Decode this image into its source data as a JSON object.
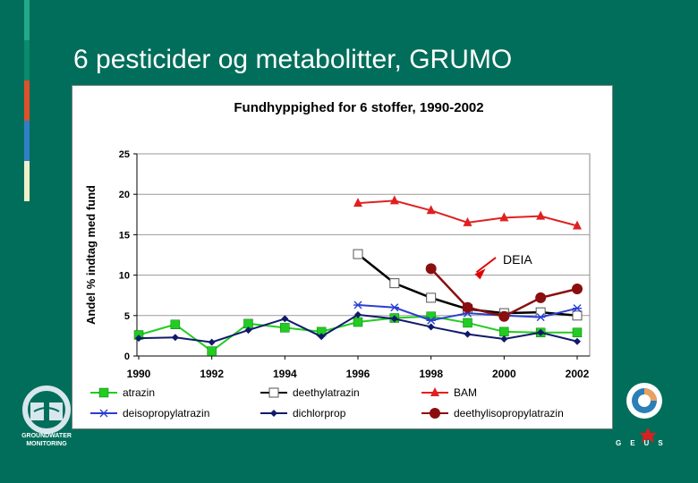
{
  "slide": {
    "title": "6 pesticider og metabolitter, GRUMO",
    "background_color": "#006e5a",
    "accent_colors": [
      "#22aa88",
      "#e0502a",
      "#2f7fc8",
      "#f0f0c8"
    ]
  },
  "logos": {
    "left_line1": "GROUNDWATER",
    "left_line2": "MONITORING",
    "right_text": "GEUS"
  },
  "chart_data": {
    "type": "line",
    "title": "Fundhyppighed for 6 stoffer, 1990-2002",
    "ylabel": "Andel % indtag med fund",
    "xlabel": "",
    "ylim": [
      0,
      25
    ],
    "xlim": [
      1990,
      2002
    ],
    "yticks": [
      0,
      5,
      10,
      15,
      20,
      25
    ],
    "xticks": [
      1990,
      1992,
      1994,
      1996,
      1998,
      2000,
      2002
    ],
    "grid": "horizontal",
    "legend_position": "bottom",
    "annotation": {
      "text": "DEIA",
      "points_to": "deethylisopropylatrazin",
      "x": 1999,
      "y": 10.8
    },
    "series": [
      {
        "name": "atrazin",
        "color": "#22cc22",
        "marker": "square-filled",
        "x": [
          1990,
          1991,
          1992,
          1993,
          1994,
          1995,
          1996,
          1997,
          1998,
          1999,
          2000,
          2001,
          2002
        ],
        "y": [
          2.6,
          3.9,
          0.6,
          4.0,
          3.5,
          3.0,
          4.2,
          4.7,
          4.9,
          4.1,
          3.0,
          2.9,
          2.9
        ]
      },
      {
        "name": "deethylatrazin",
        "color": "#000000",
        "marker": "square-open",
        "x": [
          1996,
          1997,
          1998,
          1999,
          2000,
          2001,
          2002
        ],
        "y": [
          12.6,
          9.0,
          7.2,
          5.8,
          5.3,
          5.4,
          5.0
        ]
      },
      {
        "name": "BAM",
        "color": "#e02020",
        "marker": "triangle",
        "x": [
          1996,
          1997,
          1998,
          1999,
          2000,
          2001,
          2002
        ],
        "y": [
          18.9,
          19.2,
          18.0,
          16.5,
          17.1,
          17.3,
          16.1
        ]
      },
      {
        "name": "deisopropylatrazin",
        "color": "#2a3fd0",
        "marker": "asterisk",
        "x": [
          1996,
          1997,
          1998,
          1999,
          2000,
          2001,
          2002
        ],
        "y": [
          6.3,
          6.0,
          4.4,
          5.3,
          5.0,
          4.8,
          5.9
        ]
      },
      {
        "name": "dichlorprop",
        "color": "#101a6a",
        "marker": "diamond",
        "x": [
          1990,
          1991,
          1992,
          1993,
          1994,
          1995,
          1996,
          1997,
          1998,
          1999,
          2000,
          2001,
          2002
        ],
        "y": [
          2.2,
          2.3,
          1.7,
          3.2,
          4.6,
          2.4,
          5.1,
          4.6,
          3.6,
          2.7,
          2.1,
          2.9,
          1.8
        ]
      },
      {
        "name": "deethylisopropylatrazin",
        "color": "#8a0e0e",
        "marker": "circle",
        "x": [
          1998,
          1999,
          2000,
          2001,
          2002
        ],
        "y": [
          10.8,
          6.0,
          4.9,
          7.2,
          8.3
        ]
      }
    ]
  }
}
